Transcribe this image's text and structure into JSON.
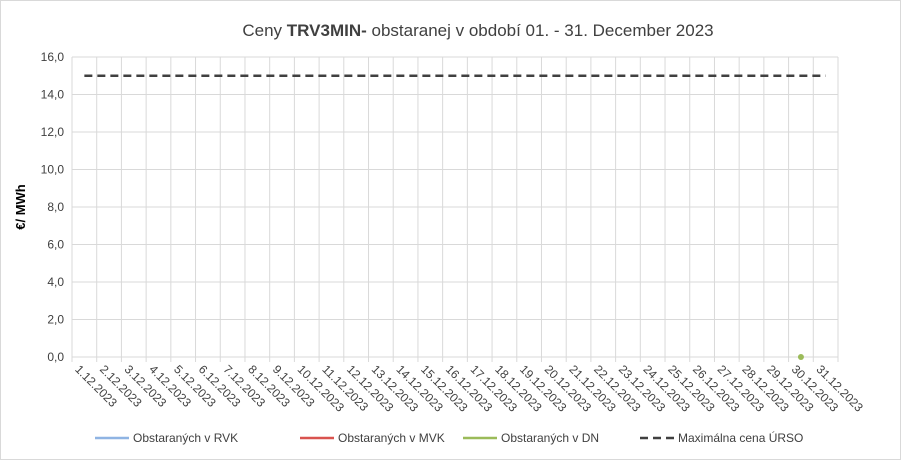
{
  "chart_data": {
    "type": "line",
    "title": [
      "Ceny ",
      "TRV3MIN-",
      " obstaranej v období 01. - 31. December 2023"
    ],
    "y_label": "€/ MWh",
    "categories": [
      "1.12.2023",
      "2.12.2023",
      "3.12.2023",
      "4.12.2023",
      "5.12.2023",
      "6.12.2023",
      "7.12.2023",
      "8.12.2023",
      "9.12.2023",
      "10.12.2023",
      "11.12.2023",
      "12.12.2023",
      "13.12.2023",
      "14.12.2023",
      "15.12.2023",
      "16.12.2023",
      "17.12.2023",
      "18.12.2023",
      "19.12.2023",
      "20.12.2023",
      "21.12.2023",
      "22.12.2023",
      "23.12.2023",
      "24.12.2023",
      "25.12.2023",
      "26.12.2023",
      "27.12.2023",
      "28.12.2023",
      "29.12.2023",
      "30.12.2023",
      "31.12.2023"
    ],
    "series": [
      {
        "name": "Obstaraných v RVK",
        "color": "#8fb4e3",
        "values": [
          null,
          null,
          null,
          null,
          null,
          null,
          null,
          null,
          null,
          null,
          null,
          null,
          null,
          null,
          null,
          null,
          null,
          null,
          null,
          null,
          null,
          null,
          null,
          null,
          null,
          null,
          null,
          null,
          null,
          null,
          null
        ]
      },
      {
        "name": "Obstaraných v MVK",
        "color": "#d9534f",
        "values": [
          null,
          null,
          null,
          null,
          null,
          null,
          null,
          null,
          null,
          null,
          null,
          null,
          null,
          null,
          null,
          null,
          null,
          null,
          null,
          null,
          null,
          null,
          null,
          null,
          null,
          null,
          null,
          null,
          null,
          null,
          null
        ]
      },
      {
        "name": "Obstaraných v DN",
        "color": "#9bbb59",
        "values": [
          null,
          null,
          null,
          null,
          null,
          null,
          null,
          null,
          null,
          null,
          null,
          null,
          null,
          null,
          null,
          null,
          null,
          null,
          null,
          null,
          null,
          null,
          null,
          null,
          null,
          null,
          null,
          null,
          null,
          0,
          null
        ]
      },
      {
        "name": "Maximálna cena ÚRSO",
        "color": "#404040",
        "dashed": true,
        "values": [
          15,
          15,
          15,
          15,
          15,
          15,
          15,
          15,
          15,
          15,
          15,
          15,
          15,
          15,
          15,
          15,
          15,
          15,
          15,
          15,
          15,
          15,
          15,
          15,
          15,
          15,
          15,
          15,
          15,
          15,
          15
        ]
      }
    ],
    "ylim": [
      0,
      16
    ],
    "yticks": [
      {
        "value": 0,
        "label": "0,0"
      },
      {
        "value": 2,
        "label": "2,0"
      },
      {
        "value": 4,
        "label": "4,0"
      },
      {
        "value": 6,
        "label": "6,0"
      },
      {
        "value": 8,
        "label": "8,0"
      },
      {
        "value": 10,
        "label": "10,0"
      },
      {
        "value": 12,
        "label": "12,0"
      },
      {
        "value": 14,
        "label": "14,0"
      },
      {
        "value": 16,
        "label": "16,0"
      }
    ],
    "grid": true,
    "legend": "bottom"
  }
}
